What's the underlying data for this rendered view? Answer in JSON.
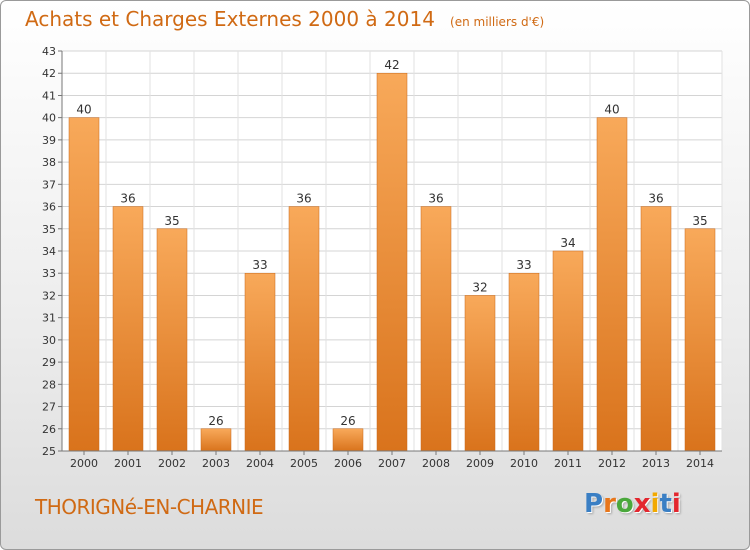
{
  "header": {
    "title": "Achats et Charges Externes 2000 à 2014",
    "unit": "(en milliers d'€)"
  },
  "footer": {
    "commune": "THORIGNé-EN-CHARNIE",
    "brand": "Proxiti",
    "brand_colors": [
      "#3a7fc4",
      "#e8761a",
      "#4aa83c",
      "#e3262e",
      "#f2a900",
      "#3a7fc4",
      "#e3262e"
    ]
  },
  "colors": {
    "bar_light": "#f8a95a",
    "bar_dark": "#d9731c",
    "grid": "#d4d4d4",
    "text": "#333333",
    "accent": "#d06a14"
  },
  "chart_data": {
    "type": "bar",
    "title": "Achats et Charges Externes 2000 à 2014",
    "subtitle": "(en milliers d'€)",
    "xlabel": "",
    "ylabel": "",
    "categories": [
      "2000",
      "2001",
      "2002",
      "2003",
      "2004",
      "2005",
      "2006",
      "2007",
      "2008",
      "2009",
      "2010",
      "2011",
      "2012",
      "2013",
      "2014"
    ],
    "values": [
      40,
      36,
      35,
      26,
      33,
      36,
      26,
      42,
      36,
      32,
      33,
      34,
      40,
      36,
      35
    ],
    "data_labels": [
      "40",
      "36",
      "35",
      "26",
      "33",
      "36",
      "26",
      "42",
      "36",
      "32",
      "33",
      "34",
      "40",
      "36",
      "35"
    ],
    "ylim": [
      25,
      43
    ],
    "yticks": [
      25,
      26,
      27,
      28,
      29,
      30,
      31,
      32,
      33,
      34,
      35,
      36,
      37,
      38,
      39,
      40,
      41,
      42,
      43
    ],
    "grid": true,
    "legend": "none"
  }
}
